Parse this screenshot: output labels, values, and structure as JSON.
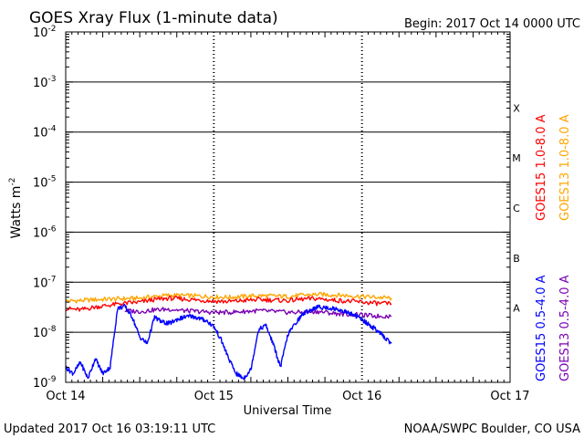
{
  "chart_data": {
    "type": "line",
    "title": "GOES Xray Flux (1-minute data)",
    "begin_label": "Begin:  2017 Oct 14 0000 UTC",
    "xlabel": "Universal Time",
    "ylabel": "Watts m",
    "ylabel_sup": "-2",
    "y_scale": "log",
    "ylim": [
      1e-09,
      0.01
    ],
    "xlim": [
      0,
      3
    ],
    "x_unit": "days since 2017 Oct 14 0000 UTC",
    "x_ticks": [
      {
        "value": 0,
        "label": "Oct 14"
      },
      {
        "value": 1,
        "label": "Oct 15"
      },
      {
        "value": 2,
        "label": "Oct 16"
      },
      {
        "value": 3,
        "label": "Oct 17"
      }
    ],
    "y_ticks": [
      {
        "exp": -2,
        "base": "10",
        "sup": "-2"
      },
      {
        "exp": -3,
        "base": "10",
        "sup": "-3"
      },
      {
        "exp": -4,
        "base": "10",
        "sup": "-4"
      },
      {
        "exp": -5,
        "base": "10",
        "sup": "-5"
      },
      {
        "exp": -6,
        "base": "10",
        "sup": "-6"
      },
      {
        "exp": -7,
        "base": "10",
        "sup": "-7"
      },
      {
        "exp": -8,
        "base": "10",
        "sup": "-8"
      },
      {
        "exp": -9,
        "base": "10",
        "sup": "-9"
      }
    ],
    "flare_classes": [
      {
        "label": "X",
        "exp": -3.5
      },
      {
        "label": "M",
        "exp": -4.5
      },
      {
        "label": "C",
        "exp": -5.5
      },
      {
        "label": "B",
        "exp": -6.5
      },
      {
        "label": "A",
        "exp": -7.5
      }
    ],
    "grid_exps": [
      -3,
      -4,
      -5,
      -6,
      -7,
      -8
    ],
    "legend": {
      "right": [
        {
          "label": "GOES15 1.0-8.0 A",
          "color": "#ff0000"
        },
        {
          "label": "GOES13 1.0-8.0 A",
          "color": "#ffa500"
        }
      ],
      "right_lower": [
        {
          "label": "GOES15 0.5-4.0 A",
          "color": "#0000ff"
        },
        {
          "label": "GOES13 0.5-4.0 A",
          "color": "#7b00b4"
        }
      ]
    },
    "series": [
      {
        "name": "GOES13 1.0-8.0 A",
        "color": "#ffa500",
        "x": [
          0,
          0.1,
          0.2,
          0.3,
          0.4,
          0.5,
          0.6,
          0.7,
          0.8,
          0.9,
          1.0,
          1.1,
          1.2,
          1.3,
          1.4,
          1.5,
          1.6,
          1.7,
          1.8,
          1.9,
          2.0,
          2.1,
          2.2
        ],
        "values": [
          4.2e-08,
          4.3e-08,
          4.5e-08,
          4.6e-08,
          4.7e-08,
          4.8e-08,
          5.2e-08,
          5.5e-08,
          5.4e-08,
          5.3e-08,
          5.1e-08,
          5e-08,
          5.2e-08,
          5.4e-08,
          5.3e-08,
          5.2e-08,
          5.5e-08,
          5.7e-08,
          5.6e-08,
          5.4e-08,
          5.2e-08,
          5e-08,
          4.8e-08
        ]
      },
      {
        "name": "GOES15 1.0-8.0 A",
        "color": "#ff0000",
        "x": [
          0,
          0.1,
          0.2,
          0.3,
          0.4,
          0.5,
          0.6,
          0.7,
          0.8,
          0.9,
          1.0,
          1.1,
          1.2,
          1.3,
          1.4,
          1.5,
          1.6,
          1.7,
          1.8,
          1.9,
          2.0,
          2.1,
          2.2
        ],
        "values": [
          3e-08,
          2.8e-08,
          3.2e-08,
          3.5e-08,
          3.8e-08,
          4e-08,
          4.5e-08,
          4.8e-08,
          4.6e-08,
          4.4e-08,
          4.2e-08,
          4.1e-08,
          4.3e-08,
          4.5e-08,
          4.4e-08,
          4.3e-08,
          4.6e-08,
          4.7e-08,
          4.4e-08,
          4.2e-08,
          4e-08,
          3.8e-08,
          3.7e-08
        ]
      },
      {
        "name": "GOES13 0.5-4.0 A",
        "color": "#7b00b4",
        "x": [
          0.4,
          0.5,
          0.6,
          0.7,
          0.8,
          0.9,
          1.0,
          1.1,
          1.2,
          1.3,
          1.4,
          1.5,
          1.6,
          1.7,
          1.8,
          1.9,
          2.0,
          2.1,
          2.2
        ],
        "values": [
          2.7e-08,
          2.6e-08,
          2.8e-08,
          2.9e-08,
          2.7e-08,
          2.6e-08,
          2.5e-08,
          2.5e-08,
          2.6e-08,
          2.7e-08,
          2.6e-08,
          2.5e-08,
          2.5e-08,
          2.6e-08,
          2.4e-08,
          2.3e-08,
          2.2e-08,
          2.1e-08,
          2.1e-08
        ]
      },
      {
        "name": "GOES15 0.5-4.0 A",
        "color": "#0000ff",
        "x": [
          0,
          0.05,
          0.1,
          0.15,
          0.2,
          0.25,
          0.3,
          0.35,
          0.4,
          0.45,
          0.5,
          0.55,
          0.6,
          0.65,
          0.7,
          0.75,
          0.8,
          0.85,
          0.9,
          0.95,
          1.0,
          1.05,
          1.1,
          1.15,
          1.2,
          1.25,
          1.3,
          1.35,
          1.4,
          1.45,
          1.5,
          1.55,
          1.6,
          1.65,
          1.7,
          1.75,
          1.8,
          1.85,
          1.9,
          1.95,
          2.0,
          2.05,
          2.1,
          2.15,
          2.2
        ],
        "values": [
          2e-09,
          1.5e-09,
          2.5e-09,
          1.2e-09,
          3e-09,
          1.5e-09,
          2e-09,
          3e-08,
          3.3e-08,
          2e-08,
          8e-09,
          6e-09,
          2e-08,
          1.6e-08,
          1.5e-08,
          1.8e-08,
          2e-08,
          2.1e-08,
          1.9e-08,
          1.7e-08,
          1.3e-08,
          7e-09,
          3e-09,
          1.5e-09,
          1.2e-09,
          1.8e-09,
          1.1e-08,
          1.4e-08,
          6e-09,
          2e-09,
          9e-09,
          1.5e-08,
          2.3e-08,
          2.8e-08,
          3.2e-08,
          3.1e-08,
          3e-08,
          2.8e-08,
          2.5e-08,
          2.2e-08,
          1.8e-08,
          1.4e-08,
          1.1e-08,
          8e-09,
          6e-09
        ]
      }
    ]
  },
  "footer": {
    "updated": "Updated 2017 Oct 16 03:19:11 UTC",
    "credit": "NOAA/SWPC Boulder, CO USA"
  }
}
